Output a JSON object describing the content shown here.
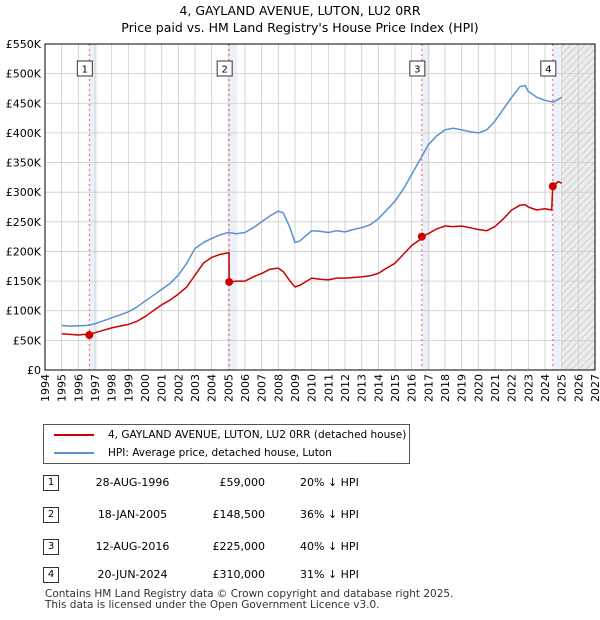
{
  "title": "4, GAYLAND AVENUE, LUTON, LU2 0RR",
  "subtitle": "Price paid vs. HM Land Registry's House Price Index (HPI)",
  "colors": {
    "property": "#cc0000",
    "hpi": "#5b8fd1",
    "future_shade": "#e6e6e6",
    "marker_band": "#dde6f4",
    "grid": "#cccccc"
  },
  "legend": {
    "property": "4, GAYLAND AVENUE, LUTON, LU2 0RR (detached house)",
    "hpi": "HPI: Average price, detached house, Luton"
  },
  "transactions": [
    {
      "num": "1",
      "date": "28-AUG-1996",
      "price": "£59,000",
      "hpi": "20% ↓ HPI"
    },
    {
      "num": "2",
      "date": "18-JAN-2005",
      "price": "£148,500",
      "hpi": "36% ↓ HPI"
    },
    {
      "num": "3",
      "date": "12-AUG-2016",
      "price": "£225,000",
      "hpi": "40% ↓ HPI"
    },
    {
      "num": "4",
      "date": "20-JUN-2024",
      "price": "£310,000",
      "hpi": "31% ↓ HPI"
    }
  ],
  "footer": {
    "line1": "Contains HM Land Registry data © Crown copyright and database right 2025.",
    "line2": "This data is licensed under the Open Government Licence v3.0."
  },
  "chart_data": {
    "type": "line",
    "title": "4, GAYLAND AVENUE, LUTON, LU2 0RR",
    "subtitle": "Price paid vs. HM Land Registry's House Price Index (HPI)",
    "xlim": [
      1994,
      2027
    ],
    "ylim": [
      0,
      550000
    ],
    "yticks": [
      0,
      50000,
      100000,
      150000,
      200000,
      250000,
      300000,
      350000,
      400000,
      450000,
      500000,
      550000
    ],
    "ytick_labels": [
      "£0",
      "£50K",
      "£100K",
      "£150K",
      "£200K",
      "£250K",
      "£300K",
      "£350K",
      "£400K",
      "£450K",
      "£500K",
      "£550K"
    ],
    "xticks": [
      1994,
      1995,
      1996,
      1997,
      1998,
      1999,
      2000,
      2001,
      2002,
      2003,
      2004,
      2005,
      2006,
      2007,
      2008,
      2009,
      2010,
      2011,
      2012,
      2013,
      2014,
      2015,
      2016,
      2017,
      2018,
      2019,
      2020,
      2021,
      2022,
      2023,
      2024,
      2025,
      2026,
      2027
    ],
    "future_from": 2025.0,
    "series": [
      {
        "name": "4, GAYLAND AVENUE, LUTON, LU2 0RR (detached house)",
        "color": "#cc0000",
        "points": [
          [
            1995.0,
            61000
          ],
          [
            1995.5,
            60000
          ],
          [
            1996.0,
            59000
          ],
          [
            1996.4,
            60000
          ],
          [
            1996.66,
            59000
          ],
          [
            1997.0,
            63000
          ],
          [
            1997.5,
            67000
          ],
          [
            1998.0,
            71000
          ],
          [
            1998.5,
            74000
          ],
          [
            1999.0,
            77000
          ],
          [
            1999.5,
            82000
          ],
          [
            2000.0,
            90000
          ],
          [
            2000.5,
            100000
          ],
          [
            2001.0,
            110000
          ],
          [
            2001.5,
            118000
          ],
          [
            2002.0,
            128000
          ],
          [
            2002.5,
            140000
          ],
          [
            2003.0,
            160000
          ],
          [
            2003.5,
            180000
          ],
          [
            2004.0,
            190000
          ],
          [
            2004.5,
            195000
          ],
          [
            2005.04,
            198000
          ],
          [
            2005.05,
            148500
          ],
          [
            2005.5,
            150000
          ],
          [
            2006.0,
            150000
          ],
          [
            2006.5,
            157000
          ],
          [
            2007.0,
            163000
          ],
          [
            2007.5,
            170000
          ],
          [
            2008.0,
            172000
          ],
          [
            2008.3,
            166000
          ],
          [
            2008.7,
            150000
          ],
          [
            2009.0,
            140000
          ],
          [
            2009.3,
            143000
          ],
          [
            2009.7,
            150000
          ],
          [
            2010.0,
            155000
          ],
          [
            2010.5,
            153000
          ],
          [
            2011.0,
            152000
          ],
          [
            2011.5,
            155000
          ],
          [
            2012.0,
            155000
          ],
          [
            2012.5,
            156000
          ],
          [
            2013.0,
            157000
          ],
          [
            2013.5,
            159000
          ],
          [
            2014.0,
            163000
          ],
          [
            2014.5,
            172000
          ],
          [
            2015.0,
            180000
          ],
          [
            2015.5,
            195000
          ],
          [
            2016.0,
            210000
          ],
          [
            2016.5,
            220000
          ],
          [
            2016.61,
            225000
          ],
          [
            2017.0,
            230000
          ],
          [
            2017.5,
            238000
          ],
          [
            2018.0,
            243000
          ],
          [
            2018.5,
            242000
          ],
          [
            2019.0,
            243000
          ],
          [
            2019.5,
            240000
          ],
          [
            2020.0,
            237000
          ],
          [
            2020.5,
            235000
          ],
          [
            2021.0,
            242000
          ],
          [
            2021.5,
            255000
          ],
          [
            2022.0,
            270000
          ],
          [
            2022.5,
            278000
          ],
          [
            2022.8,
            279000
          ],
          [
            2023.0,
            275000
          ],
          [
            2023.5,
            270000
          ],
          [
            2024.0,
            272000
          ],
          [
            2024.4,
            270000
          ],
          [
            2024.46,
            310000
          ],
          [
            2024.8,
            318000
          ],
          [
            2025.0,
            315000
          ]
        ]
      },
      {
        "name": "HPI: Average price, detached house, Luton",
        "color": "#5b8fd1",
        "points": [
          [
            1995.0,
            75000
          ],
          [
            1995.5,
            74000
          ],
          [
            1996.0,
            74500
          ],
          [
            1996.5,
            75000
          ],
          [
            1997.0,
            78000
          ],
          [
            1997.5,
            83000
          ],
          [
            1998.0,
            88000
          ],
          [
            1998.5,
            93000
          ],
          [
            1999.0,
            98000
          ],
          [
            1999.5,
            106000
          ],
          [
            2000.0,
            116000
          ],
          [
            2000.5,
            126000
          ],
          [
            2001.0,
            136000
          ],
          [
            2001.5,
            146000
          ],
          [
            2002.0,
            160000
          ],
          [
            2002.5,
            180000
          ],
          [
            2003.0,
            205000
          ],
          [
            2003.5,
            215000
          ],
          [
            2004.0,
            222000
          ],
          [
            2004.5,
            228000
          ],
          [
            2005.0,
            232000
          ],
          [
            2005.5,
            230000
          ],
          [
            2006.0,
            232000
          ],
          [
            2006.5,
            240000
          ],
          [
            2007.0,
            250000
          ],
          [
            2007.5,
            260000
          ],
          [
            2008.0,
            268000
          ],
          [
            2008.3,
            265000
          ],
          [
            2008.7,
            240000
          ],
          [
            2009.0,
            215000
          ],
          [
            2009.3,
            218000
          ],
          [
            2009.7,
            228000
          ],
          [
            2010.0,
            235000
          ],
          [
            2010.5,
            234000
          ],
          [
            2011.0,
            232000
          ],
          [
            2011.5,
            235000
          ],
          [
            2012.0,
            233000
          ],
          [
            2012.5,
            237000
          ],
          [
            2013.0,
            240000
          ],
          [
            2013.5,
            245000
          ],
          [
            2014.0,
            255000
          ],
          [
            2014.5,
            270000
          ],
          [
            2015.0,
            285000
          ],
          [
            2015.5,
            305000
          ],
          [
            2016.0,
            330000
          ],
          [
            2016.5,
            355000
          ],
          [
            2017.0,
            380000
          ],
          [
            2017.5,
            395000
          ],
          [
            2018.0,
            405000
          ],
          [
            2018.5,
            408000
          ],
          [
            2019.0,
            405000
          ],
          [
            2019.5,
            402000
          ],
          [
            2020.0,
            400000
          ],
          [
            2020.5,
            405000
          ],
          [
            2021.0,
            420000
          ],
          [
            2021.5,
            440000
          ],
          [
            2022.0,
            460000
          ],
          [
            2022.5,
            478000
          ],
          [
            2022.8,
            480000
          ],
          [
            2023.0,
            470000
          ],
          [
            2023.5,
            460000
          ],
          [
            2024.0,
            455000
          ],
          [
            2024.5,
            452000
          ],
          [
            2025.0,
            460000
          ]
        ]
      }
    ],
    "markers": [
      {
        "label": "1",
        "x": 1996.66,
        "y": 59000
      },
      {
        "label": "2",
        "x": 2005.05,
        "y": 148500
      },
      {
        "label": "3",
        "x": 2016.61,
        "y": 225000
      },
      {
        "label": "4",
        "x": 2024.47,
        "y": 310000
      }
    ]
  }
}
